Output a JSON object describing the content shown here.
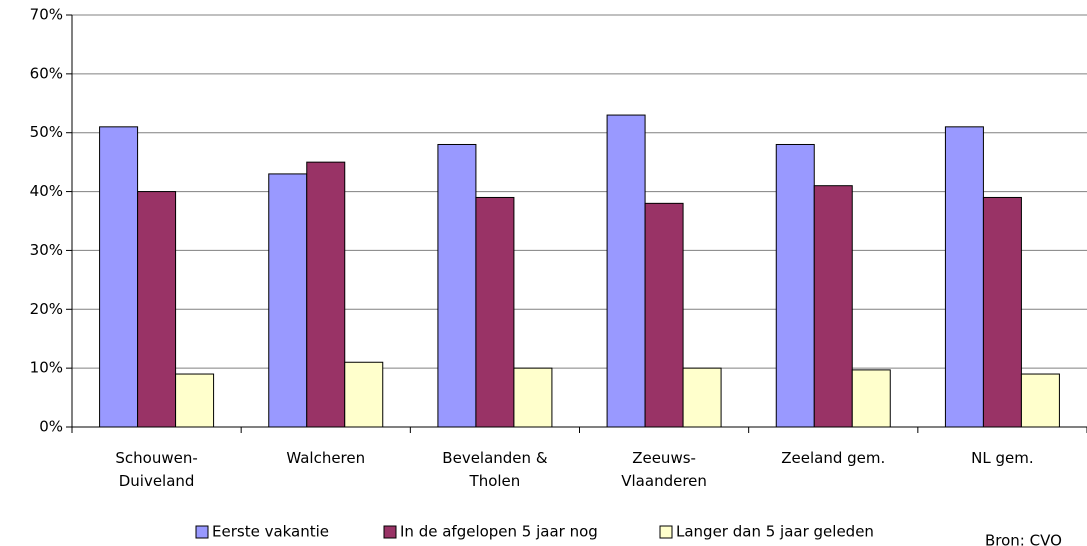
{
  "chart_data": {
    "type": "bar",
    "categories": [
      "Schouwen-Duiveland",
      "Walcheren",
      "Bevelanden & Tholen",
      "Zeeuws-Vlaanderen",
      "Zeeland gem.",
      "NL gem."
    ],
    "series": [
      {
        "name": "Eerste vakantie",
        "color": "#9999ff",
        "values": [
          51,
          43,
          48,
          53,
          48,
          51
        ]
      },
      {
        "name": "In de afgelopen 5 jaar nog",
        "color": "#993366",
        "values": [
          40,
          45,
          39,
          38,
          41,
          39
        ]
      },
      {
        "name": "Langer dan 5 jaar geleden",
        "color": "#ffffcc",
        "values": [
          9,
          11,
          10,
          10,
          9.7,
          9
        ]
      }
    ],
    "ylim": [
      0,
      70
    ],
    "yticks": [
      {
        "value": 0,
        "label": "0%"
      },
      {
        "value": 10,
        "label": "10%"
      },
      {
        "value": 20,
        "label": "20%"
      },
      {
        "value": 30,
        "label": "30%"
      },
      {
        "value": 40,
        "label": "40%"
      },
      {
        "value": 50,
        "label": "50%"
      },
      {
        "value": 60,
        "label": "60%"
      },
      {
        "value": 70,
        "label": "70%"
      }
    ],
    "grid": true,
    "legend": "bottom",
    "source": "Bron: CVO"
  }
}
